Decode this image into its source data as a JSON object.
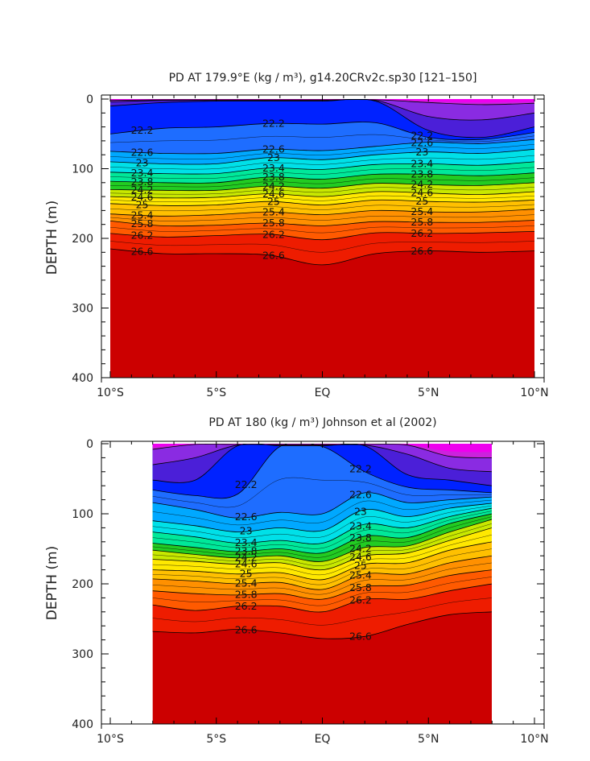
{
  "chart_data": [
    {
      "type": "contour",
      "title": "PD AT 179.9°E (kg / m³), g14.20CRv2c.sp30 [121–150]",
      "xlabel": "",
      "ylabel": "DEPTH (m)",
      "x_ticks": [
        "10°S",
        "5°S",
        "EQ",
        "5°N",
        "10°N"
      ],
      "y_ticks": [
        "0",
        "100",
        "200",
        "300",
        "400"
      ],
      "xlim": [
        -10,
        10
      ],
      "ylim": [
        0,
        400
      ],
      "data_xlim": [
        -10,
        10
      ],
      "contour_labels": [
        "22.2",
        "22.6",
        "23",
        "23.4",
        "23.8",
        "24.2",
        "24.6",
        "25",
        "25.4",
        "25.8",
        "26.2",
        "26.6"
      ],
      "levels": [
        21.0,
        21.4,
        21.8,
        22.2,
        22.6,
        23.0,
        23.4,
        23.8,
        24.2,
        24.6,
        25.0,
        25.4,
        25.8,
        26.2,
        26.6
      ],
      "profiles": [
        {
          "lat": -10,
          "depths": [
            0,
            2,
            4,
            10,
            50,
            75,
            90,
            105,
            118,
            130,
            140,
            150,
            165,
            175,
            193,
            215,
            255,
            355
          ]
        },
        {
          "lat": -7.5,
          "depths": [
            0,
            1,
            2,
            5,
            42,
            78,
            93,
            107,
            120,
            131,
            142,
            153,
            168,
            182,
            198,
            222,
            265,
            330
          ]
        },
        {
          "lat": -5,
          "depths": [
            0,
            1,
            2,
            3,
            40,
            78,
            93,
            107,
            120,
            131,
            141,
            152,
            166,
            181,
            196,
            222,
            248,
            300
          ]
        },
        {
          "lat": -2.5,
          "depths": [
            0,
            1,
            2,
            3,
            35,
            72,
            84,
            99,
            112,
            125,
            136,
            147,
            162,
            178,
            194,
            224,
            260,
            355
          ]
        },
        {
          "lat": 0,
          "depths": [
            0,
            1,
            2,
            3,
            36,
            74,
            87,
            101,
            115,
            128,
            140,
            152,
            166,
            182,
            202,
            238,
            280,
            375
          ]
        },
        {
          "lat": 2.5,
          "depths": [
            0,
            1,
            2,
            3,
            34,
            68,
            80,
            94,
            108,
            121,
            133,
            145,
            160,
            176,
            192,
            222,
            248,
            360
          ]
        },
        {
          "lat": 5,
          "depths": [
            0,
            5,
            25,
            45,
            55,
            62,
            76,
            93,
            108,
            123,
            135,
            147,
            162,
            177,
            193,
            218,
            242,
            318
          ]
        },
        {
          "lat": 7.5,
          "depths": [
            0,
            8,
            30,
            55,
            58,
            64,
            78,
            95,
            110,
            124,
            137,
            148,
            162,
            177,
            192,
            220,
            238,
            290
          ]
        },
        {
          "lat": 10,
          "depths": [
            0,
            6,
            20,
            40,
            48,
            58,
            72,
            90,
            106,
            120,
            133,
            145,
            158,
            174,
            190,
            218,
            235,
            295
          ]
        }
      ]
    },
    {
      "type": "contour",
      "title": "PD AT 180 (kg / m³) Johnson et al (2002)",
      "xlabel": "",
      "ylabel": "DEPTH (m)",
      "x_ticks": [
        "10°S",
        "5°S",
        "EQ",
        "5°N",
        "10°N"
      ],
      "y_ticks": [
        "0",
        "100",
        "200",
        "300",
        "400"
      ],
      "xlim": [
        -10,
        10
      ],
      "ylim": [
        0,
        400
      ],
      "data_xlim": [
        -8,
        8
      ],
      "contour_labels": [
        "22.2",
        "22.6",
        "23",
        "23.4",
        "23.8",
        "24.2",
        "24.6",
        "25",
        "25.4",
        "25.8",
        "26.2",
        "26.6"
      ],
      "levels": [
        21.0,
        21.4,
        21.8,
        22.2,
        22.6,
        23.0,
        23.4,
        23.8,
        24.2,
        24.6,
        25.0,
        25.4,
        25.8,
        26.2,
        26.6
      ],
      "profiles": [
        {
          "lat": -8,
          "depths": [
            0,
            8,
            30,
            52,
            66,
            84,
            110,
            126,
            142,
            152,
            165,
            180,
            193,
            210,
            230,
            268,
            375
          ]
        },
        {
          "lat": -6,
          "depths": [
            0,
            1,
            20,
            52,
            74,
            94,
            117,
            133,
            148,
            158,
            168,
            182,
            196,
            214,
            238,
            270,
            370
          ]
        },
        {
          "lat": -4,
          "depths": [
            0,
            1,
            2,
            3,
            72,
            106,
            126,
            142,
            154,
            163,
            172,
            186,
            200,
            216,
            232,
            265,
            372
          ]
        },
        {
          "lat": -2,
          "depths": [
            0,
            1,
            2,
            3,
            4,
            98,
            120,
            138,
            150,
            160,
            170,
            184,
            198,
            214,
            232,
            270,
            380
          ]
        },
        {
          "lat": 0,
          "depths": [
            0,
            1,
            2,
            3,
            4,
            100,
            124,
            142,
            156,
            168,
            180,
            194,
            208,
            222,
            240,
            278,
            395
          ]
        },
        {
          "lat": 2,
          "depths": [
            0,
            1,
            2,
            3,
            40,
            70,
            94,
            115,
            132,
            148,
            160,
            172,
            186,
            204,
            222,
            275,
            390
          ]
        },
        {
          "lat": 4,
          "depths": [
            0,
            2,
            15,
            44,
            62,
            84,
            104,
            120,
            134,
            146,
            156,
            170,
            186,
            202,
            222,
            258,
            332
          ]
        },
        {
          "lat": 6,
          "depths": [
            0,
            18,
            35,
            52,
            66,
            80,
            92,
            104,
            114,
            126,
            138,
            152,
            170,
            188,
            210,
            244,
            340
          ]
        },
        {
          "lat": 8,
          "depths": [
            0,
            20,
            40,
            60,
            70,
            76,
            85,
            92,
            100,
            108,
            120,
            140,
            160,
            180,
            200,
            240,
            358
          ]
        }
      ]
    }
  ]
}
